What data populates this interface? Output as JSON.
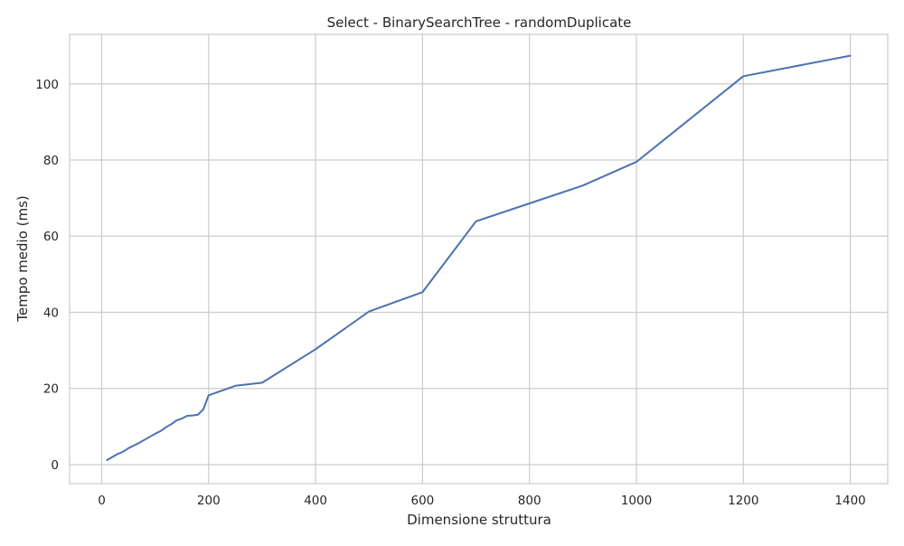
{
  "chart_data": {
    "type": "line",
    "title": "Select - BinarySearchTree - randomDuplicate",
    "xlabel": "Dimensione struttura",
    "ylabel": "Tempo medio (ms)",
    "xlim": [
      -60,
      1470
    ],
    "ylim": [
      -5,
      113
    ],
    "xticks": [
      0,
      200,
      400,
      600,
      800,
      1000,
      1200,
      1400
    ],
    "yticks": [
      0,
      20,
      40,
      60,
      80,
      100
    ],
    "grid": true,
    "line_color": "#4c72b0",
    "grid_color": "#cccccc",
    "series": [
      {
        "x": [
          10,
          20,
          30,
          40,
          50,
          60,
          70,
          80,
          90,
          100,
          110,
          120,
          130,
          140,
          150,
          160,
          170,
          180,
          190,
          200,
          250,
          300,
          400,
          500,
          600,
          700,
          800,
          900,
          1000,
          1200,
          1400
        ],
        "values": [
          1.2,
          2.0,
          2.8,
          3.4,
          4.3,
          5.0,
          5.7,
          6.5,
          7.3,
          8.1,
          8.8,
          9.8,
          10.6,
          11.6,
          12.1,
          12.8,
          12.9,
          13.1,
          14.5,
          18.2,
          20.7,
          21.5,
          30.3,
          40.2,
          45.3,
          63.9,
          68.6,
          73.3,
          79.5,
          102.0,
          107.4
        ]
      }
    ]
  }
}
